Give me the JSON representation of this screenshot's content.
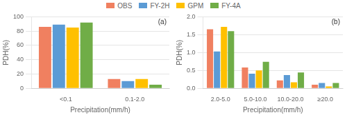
{
  "chart_data": [
    {
      "type": "bar",
      "categories": [
        "<0.1",
        "0.1-2.0"
      ],
      "series": [
        {
          "name": "OBS",
          "color": "#F08060",
          "values": [
            86,
            13
          ]
        },
        {
          "name": "FY-2H",
          "color": "#5B9BD5",
          "values": [
            89,
            10
          ]
        },
        {
          "name": "GPM",
          "color": "#FFC000",
          "values": [
            85,
            13
          ]
        },
        {
          "name": "FY-4A",
          "color": "#70AD47",
          "values": [
            92,
            5
          ]
        }
      ],
      "x_label": "Precipitation(mm/h)",
      "y_label": "PDH(%)",
      "ylim": [
        0,
        100
      ],
      "yticks": [
        0,
        20,
        40,
        60,
        80,
        100
      ],
      "annotations": [
        "(a)"
      ],
      "grid": true,
      "legend": "top"
    },
    {
      "type": "bar",
      "categories": [
        "2.0-5.0",
        "5.0-10.0",
        "10.0-20.0",
        "≥20.0"
      ],
      "series": [
        {
          "name": "OBS",
          "color": "#F08060",
          "values": [
            1.65,
            0.58,
            0.22,
            0.1
          ]
        },
        {
          "name": "FY-2H",
          "color": "#5B9BD5",
          "values": [
            1.03,
            0.41,
            0.37,
            0.15
          ]
        },
        {
          "name": "GPM",
          "color": "#FFC000",
          "values": [
            1.72,
            0.5,
            0.17,
            0.05
          ]
        },
        {
          "name": "FY-4A",
          "color": "#70AD47",
          "values": [
            1.6,
            0.74,
            0.44,
            0.15
          ]
        }
      ],
      "x_label": "Precipitation(mm/h)",
      "y_label": "PDH(%)",
      "ylim": [
        0,
        2.0
      ],
      "yticks": [
        {
          "value": 0,
          "label": "0.0"
        },
        0.5,
        {
          "value": 1,
          "label": "1.0"
        },
        1.5,
        {
          "value": 2,
          "label": "2.0"
        }
      ],
      "annotations": [
        "(b)"
      ],
      "grid": true
    }
  ]
}
